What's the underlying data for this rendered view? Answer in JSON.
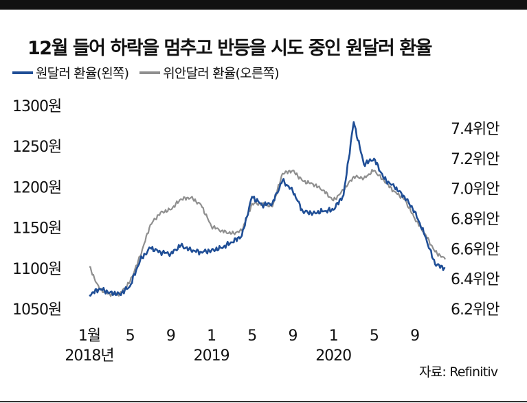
{
  "title": "12월 들어 하락을 멈추고 반등을 시도 중인 원달러 환율",
  "source": "자료: Refinitiv",
  "colors": {
    "krw": "#1f4e96",
    "cny": "#8f8f8f",
    "topbar": "#111111"
  },
  "chart_data": {
    "type": "line",
    "title": "12월 들어 하락을 멈추고 반등을 시도 중인 원달러 환율",
    "x_axis": {
      "range": [
        "2018-01",
        "2020-12"
      ],
      "tick_labels": [
        {
          "label": "1월",
          "month": "2018-01"
        },
        {
          "label": "5",
          "month": "2018-05"
        },
        {
          "label": "9",
          "month": "2018-09"
        },
        {
          "label": "1",
          "month": "2019-01"
        },
        {
          "label": "5",
          "month": "2019-05"
        },
        {
          "label": "9",
          "month": "2019-09"
        },
        {
          "label": "1",
          "month": "2020-01"
        },
        {
          "label": "5",
          "month": "2020-05"
        },
        {
          "label": "9",
          "month": "2020-09"
        }
      ],
      "year_labels": [
        {
          "label": "2018년",
          "month": "2018-01"
        },
        {
          "label": "2019",
          "month": "2019-01"
        },
        {
          "label": "2020",
          "month": "2020-01"
        }
      ]
    },
    "y_left": {
      "range": [
        1050,
        1300
      ],
      "ticks": [
        1300,
        1250,
        1200,
        1150,
        1100,
        1050
      ],
      "tick_labels": [
        "1300원",
        "1250원",
        "1200원",
        "1150원",
        "1100원",
        "1050원"
      ]
    },
    "y_right": {
      "range": [
        6.2,
        7.4
      ],
      "ticks": [
        7.4,
        7.2,
        7.0,
        6.8,
        6.6,
        6.4,
        6.2
      ],
      "tick_labels": [
        "7.4위안",
        "7.2위안",
        "7.0위안",
        "6.8위안",
        "6.6위안",
        "6.4위안",
        "6.2위안"
      ]
    },
    "grid": false,
    "legend": "top-left",
    "series": [
      {
        "name": "원달러 환율(왼쪽)",
        "axis": "left",
        "color": "#1f4e96",
        "x": [
          "2018-01",
          "2018-02",
          "2018-03",
          "2018-04",
          "2018-05",
          "2018-06",
          "2018-07",
          "2018-08",
          "2018-09",
          "2018-10",
          "2018-11",
          "2018-12",
          "2019-01",
          "2019-02",
          "2019-03",
          "2019-04",
          "2019-05",
          "2019-06",
          "2019-07",
          "2019-08",
          "2019-09",
          "2019-10",
          "2019-11",
          "2019-12",
          "2020-01",
          "2020-02",
          "2020-03",
          "2020-04",
          "2020-05",
          "2020-06",
          "2020-07",
          "2020-08",
          "2020-09",
          "2020-10",
          "2020-11",
          "2020-12"
        ],
        "values": [
          1067,
          1075,
          1070,
          1068,
          1078,
          1110,
          1125,
          1120,
          1118,
          1128,
          1122,
          1120,
          1122,
          1125,
          1132,
          1140,
          1188,
          1178,
          1180,
          1208,
          1195,
          1170,
          1168,
          1170,
          1172,
          1190,
          1280,
          1228,
          1235,
          1210,
          1200,
          1188,
          1170,
          1140,
          1105,
          1100
        ]
      },
      {
        "name": "위안달러 환율(오른쪽)",
        "axis": "right",
        "color": "#8f8f8f",
        "x": [
          "2018-01",
          "2018-02",
          "2018-03",
          "2018-04",
          "2018-05",
          "2018-06",
          "2018-07",
          "2018-08",
          "2018-09",
          "2018-10",
          "2018-11",
          "2018-12",
          "2019-01",
          "2019-02",
          "2019-03",
          "2019-04",
          "2019-05",
          "2019-06",
          "2019-07",
          "2019-08",
          "2019-09",
          "2019-10",
          "2019-11",
          "2019-12",
          "2020-01",
          "2020-02",
          "2020-03",
          "2020-04",
          "2020-05",
          "2020-06",
          "2020-07",
          "2020-08",
          "2020-09",
          "2020-10",
          "2020-11",
          "2020-12"
        ],
        "values": [
          6.48,
          6.33,
          6.3,
          6.3,
          6.38,
          6.55,
          6.76,
          6.84,
          6.86,
          6.93,
          6.94,
          6.89,
          6.75,
          6.72,
          6.7,
          6.72,
          6.9,
          6.9,
          6.88,
          7.1,
          7.12,
          7.05,
          7.03,
          6.99,
          6.92,
          6.99,
          7.08,
          7.07,
          7.12,
          7.05,
          6.98,
          6.93,
          6.8,
          6.7,
          6.58,
          6.53
        ]
      }
    ]
  }
}
